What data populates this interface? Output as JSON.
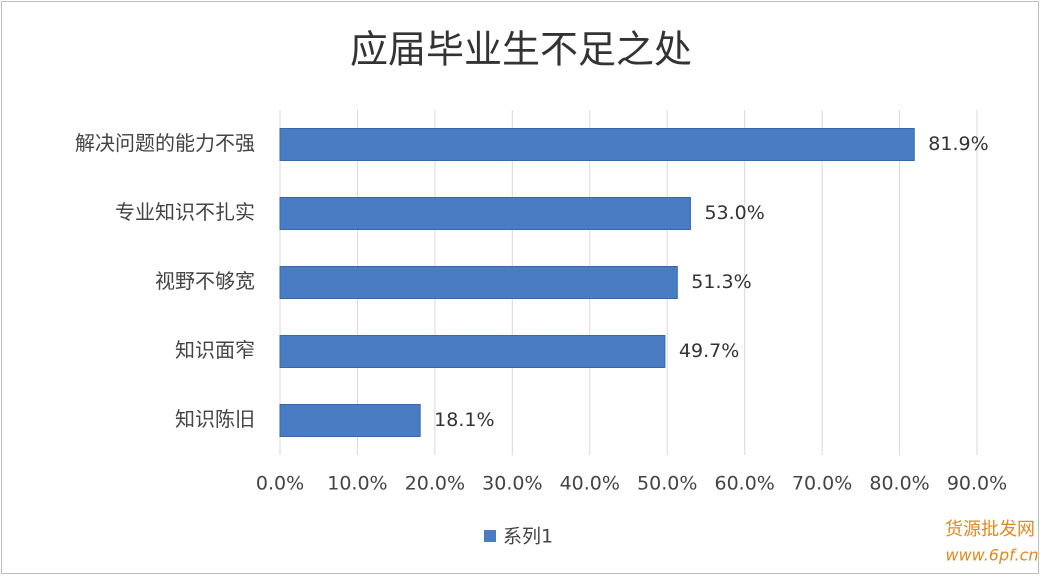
{
  "chart_data": {
    "type": "bar",
    "orientation": "horizontal",
    "title": "应届毕业生不足之处",
    "categories": [
      "解决问题的能力不强",
      "专业知识不扎实",
      "视野不够宽",
      "知识面窄",
      "知识陈旧"
    ],
    "series": [
      {
        "name": "系列1",
        "color": "#4a7cc4",
        "values": [
          81.9,
          53.0,
          51.3,
          49.7,
          18.1
        ],
        "value_labels": [
          "81.9%",
          "53.0%",
          "51.3%",
          "49.7%",
          "18.1%"
        ]
      }
    ],
    "xlim": [
      0,
      90
    ],
    "xticks": [
      {
        "value": 0,
        "label": "0.0%"
      },
      {
        "value": 10,
        "label": "10.0%"
      },
      {
        "value": 20,
        "label": "20.0%"
      },
      {
        "value": 30,
        "label": "30.0%"
      },
      {
        "value": 40,
        "label": "40.0%"
      },
      {
        "value": 50,
        "label": "50.0%"
      },
      {
        "value": 60,
        "label": "60.0%"
      },
      {
        "value": 70,
        "label": "70.0%"
      },
      {
        "value": 80,
        "label": "80.0%"
      },
      {
        "value": 90,
        "label": "90.0%"
      }
    ],
    "grid": true,
    "legend": "bottom"
  },
  "watermark": {
    "name": "货源批发网",
    "url": "www.6pf.cn"
  }
}
